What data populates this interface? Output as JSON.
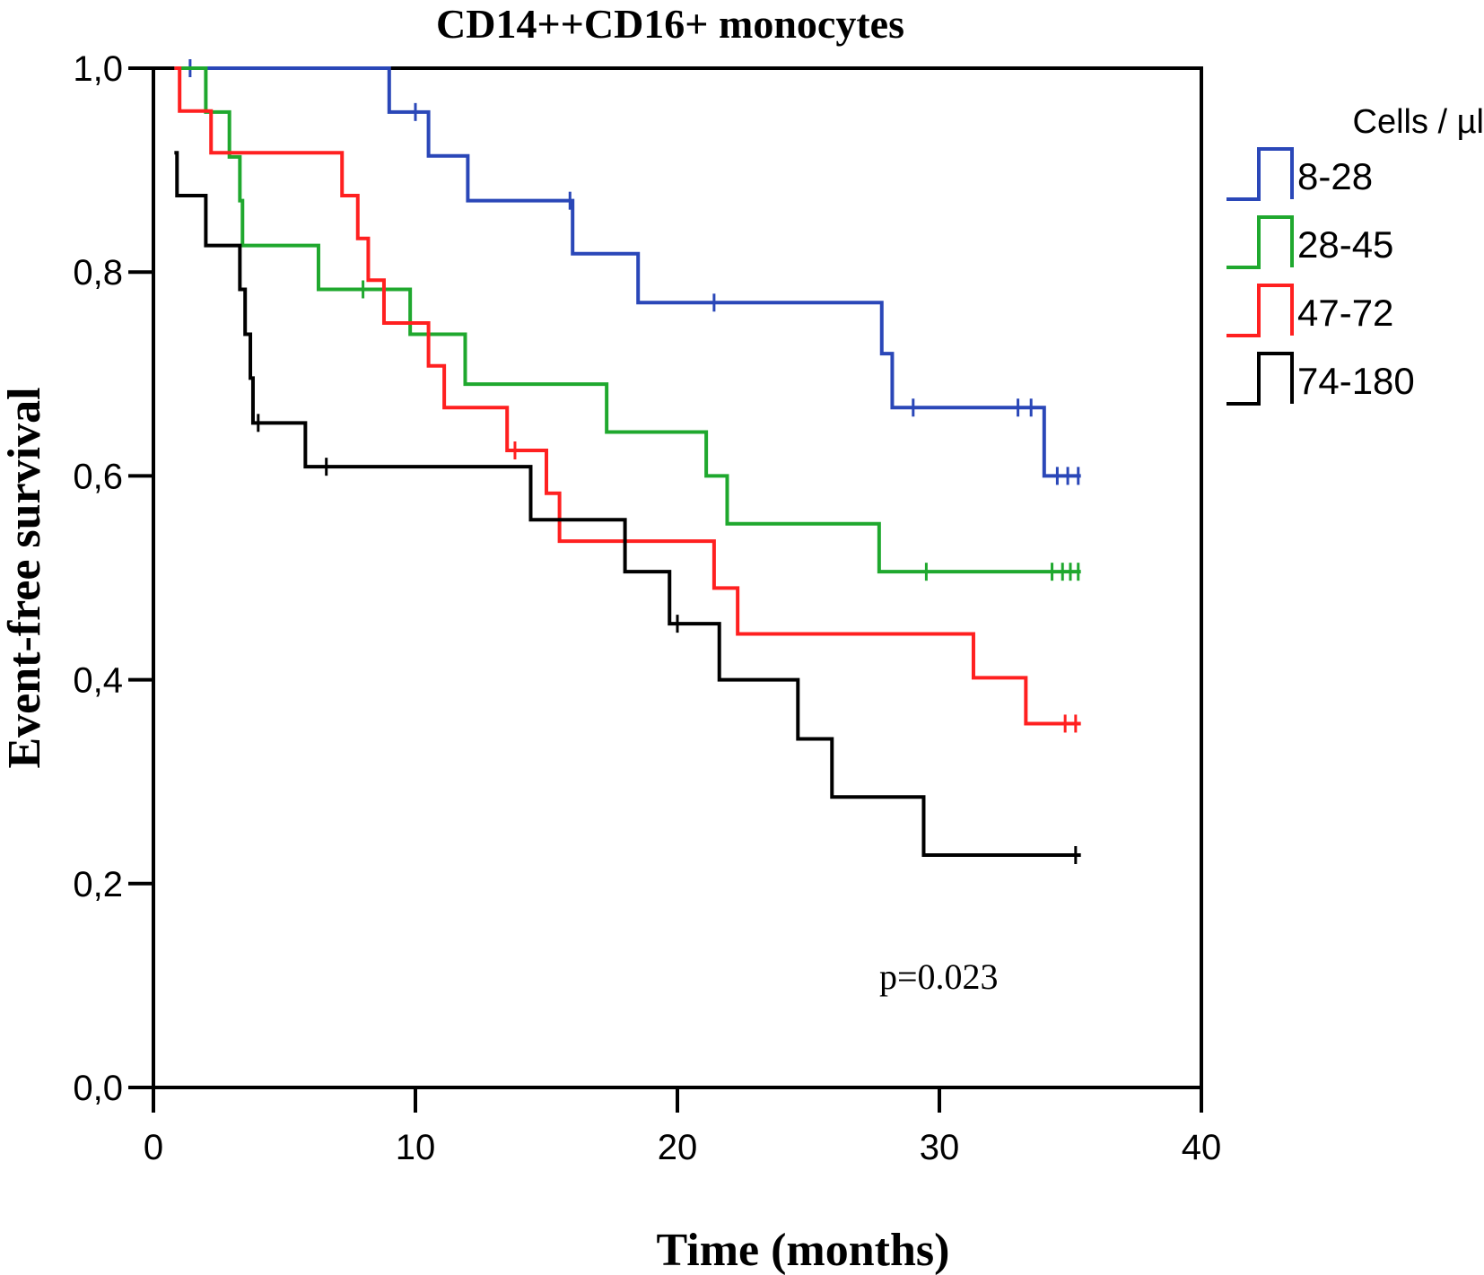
{
  "chart_data": {
    "type": "line",
    "subtype": "kaplan-meier step curves",
    "title": "CD14++CD16+ monocytes",
    "xlabel": "Time (months)",
    "ylabel": "Event-free survival",
    "xlim": [
      0,
      40
    ],
    "ylim": [
      0,
      1
    ],
    "x_ticks": [
      0,
      10,
      20,
      30,
      40
    ],
    "x_tick_labels": [
      "0",
      "10",
      "20",
      "30",
      "40"
    ],
    "y_ticks": [
      0,
      0.2,
      0.4,
      0.6,
      0.8,
      1.0
    ],
    "y_tick_labels": [
      "0,0",
      "0,2",
      "0,4",
      "0,6",
      "0,8",
      "1,0"
    ],
    "grid": false,
    "legend": {
      "title": "Cells / µl",
      "placement": "right"
    },
    "annotation": "p=0.023",
    "series": [
      {
        "name": "8-28",
        "color": "#2a47b8",
        "steps": [
          [
            0.8,
            1.0
          ],
          [
            9.0,
            0.957
          ],
          [
            10.5,
            0.914
          ],
          [
            12.0,
            0.87
          ],
          [
            16.0,
            0.818
          ],
          [
            18.5,
            0.77
          ],
          [
            27.8,
            0.72
          ],
          [
            28.2,
            0.667
          ],
          [
            34.0,
            0.6
          ],
          [
            35.4,
            0.6
          ]
        ],
        "censored": [
          [
            1.4,
            1.0
          ],
          [
            10.0,
            0.957
          ],
          [
            15.9,
            0.87
          ],
          [
            21.4,
            0.77
          ],
          [
            29.0,
            0.667
          ],
          [
            33.0,
            0.667
          ],
          [
            33.5,
            0.667
          ],
          [
            34.5,
            0.6
          ],
          [
            34.9,
            0.6
          ],
          [
            35.3,
            0.6
          ]
        ]
      },
      {
        "name": "28-45",
        "color": "#1fa82e",
        "steps": [
          [
            0.8,
            1.0
          ],
          [
            2.0,
            0.957
          ],
          [
            2.9,
            0.913
          ],
          [
            3.3,
            0.87
          ],
          [
            3.4,
            0.826
          ],
          [
            6.3,
            0.783
          ],
          [
            9.8,
            0.739
          ],
          [
            11.9,
            0.69
          ],
          [
            17.3,
            0.643
          ],
          [
            21.1,
            0.6
          ],
          [
            21.9,
            0.553
          ],
          [
            27.7,
            0.506
          ],
          [
            35.4,
            0.506
          ]
        ],
        "censored": [
          [
            8.0,
            0.783
          ],
          [
            29.5,
            0.506
          ],
          [
            34.3,
            0.506
          ],
          [
            34.7,
            0.506
          ],
          [
            35.0,
            0.506
          ],
          [
            35.3,
            0.506
          ]
        ]
      },
      {
        "name": "47-72",
        "color": "#ff2020",
        "steps": [
          [
            0.8,
            1.0
          ],
          [
            1.0,
            0.958
          ],
          [
            2.2,
            0.917
          ],
          [
            7.2,
            0.875
          ],
          [
            7.8,
            0.833
          ],
          [
            8.2,
            0.792
          ],
          [
            8.8,
            0.75
          ],
          [
            10.5,
            0.708
          ],
          [
            11.1,
            0.667
          ],
          [
            13.5,
            0.625
          ],
          [
            15.0,
            0.583
          ],
          [
            15.5,
            0.536
          ],
          [
            21.4,
            0.49
          ],
          [
            22.3,
            0.445
          ],
          [
            31.3,
            0.402
          ],
          [
            33.3,
            0.357
          ],
          [
            35.4,
            0.357
          ]
        ],
        "censored": [
          [
            13.8,
            0.625
          ],
          [
            34.8,
            0.357
          ],
          [
            35.2,
            0.357
          ]
        ]
      },
      {
        "name": "74-180",
        "color": "#000000",
        "steps": [
          [
            0.8,
            0.917
          ],
          [
            0.9,
            0.875
          ],
          [
            2.0,
            0.826
          ],
          [
            3.3,
            0.783
          ],
          [
            3.5,
            0.739
          ],
          [
            3.7,
            0.696
          ],
          [
            3.8,
            0.652
          ],
          [
            5.8,
            0.609
          ],
          [
            14.4,
            0.557
          ],
          [
            18.0,
            0.506
          ],
          [
            19.7,
            0.455
          ],
          [
            21.6,
            0.4
          ],
          [
            24.6,
            0.342
          ],
          [
            25.9,
            0.285
          ],
          [
            29.4,
            0.228
          ],
          [
            35.4,
            0.228
          ]
        ],
        "censored": [
          [
            4.0,
            0.652
          ],
          [
            6.6,
            0.609
          ],
          [
            20.0,
            0.455
          ],
          [
            35.2,
            0.228
          ]
        ]
      }
    ]
  }
}
